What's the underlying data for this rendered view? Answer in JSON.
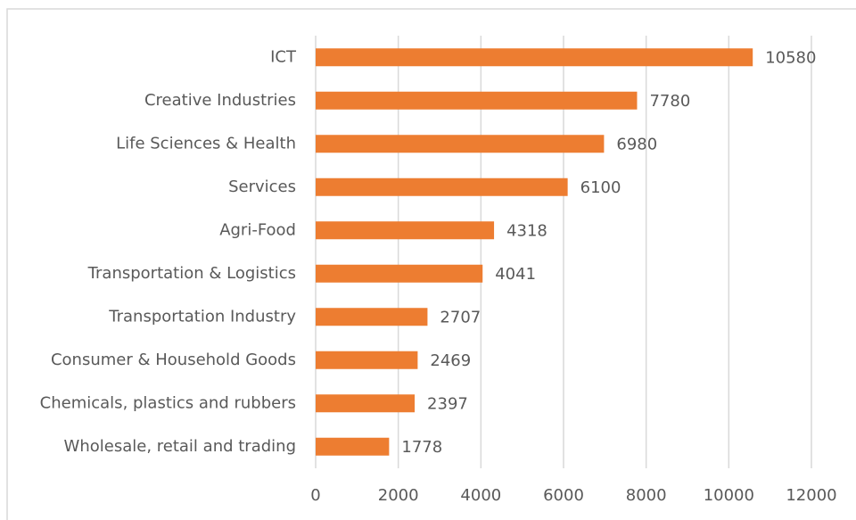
{
  "chart_data": {
    "type": "bar",
    "orientation": "horizontal",
    "categories": [
      "ICT",
      "Creative Industries",
      "Life Sciences & Health",
      "Services",
      "Agri-Food",
      "Transportation & Logistics",
      "Transportation Industry",
      "Consumer & Household Goods",
      "Chemicals, plastics and rubbers",
      "Wholesale, retail and trading"
    ],
    "values": [
      10580,
      7780,
      6980,
      6100,
      4318,
      4041,
      2707,
      2469,
      2397,
      1778
    ],
    "color": "#ed7d31",
    "xlim": [
      0,
      12000
    ],
    "xticks": [
      0,
      2000,
      4000,
      6000,
      8000,
      10000,
      12000
    ],
    "grid": true
  }
}
